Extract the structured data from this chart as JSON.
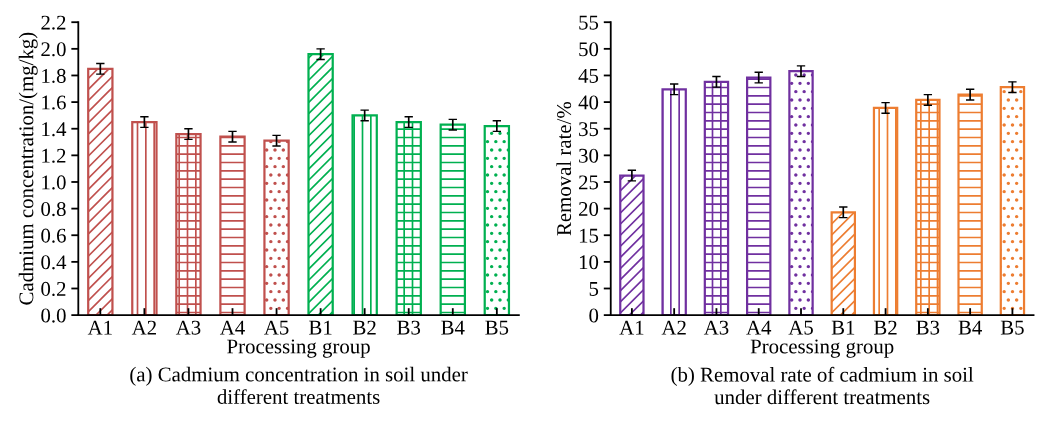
{
  "chart_data": [
    {
      "type": "bar",
      "title": "(a) Cadmium concentration in soil under different treatments",
      "xlabel": "Processing group",
      "ylabel": "Cadmium concentration/(mg/kg)",
      "categories": [
        "A1",
        "A2",
        "A3",
        "A4",
        "A5",
        "B1",
        "B2",
        "B3",
        "B4",
        "B5"
      ],
      "values": [
        1.85,
        1.45,
        1.36,
        1.34,
        1.31,
        1.96,
        1.5,
        1.45,
        1.43,
        1.42
      ],
      "errors": [
        0.04,
        0.04,
        0.04,
        0.04,
        0.04,
        0.04,
        0.04,
        0.04,
        0.04,
        0.04
      ],
      "colors": [
        "#c0504d",
        "#c0504d",
        "#c0504d",
        "#c0504d",
        "#c0504d",
        "#00b050",
        "#00b050",
        "#00b050",
        "#00b050",
        "#00b050"
      ],
      "ylim": [
        0,
        2.2
      ],
      "yticks": [
        {
          "value": 0,
          "label": "0.0"
        },
        0.2,
        0.4,
        0.6,
        0.8,
        {
          "value": 1,
          "label": "1.0"
        },
        1.2,
        1.4,
        1.6,
        1.8,
        {
          "value": 2,
          "label": "2.0"
        },
        2.2
      ],
      "grid": false,
      "legend": false
    },
    {
      "type": "bar",
      "title": "(b) Removal rate of cadmium in soil under different treatments",
      "xlabel": "Processing group",
      "ylabel": "Removal rate/%",
      "categories": [
        "A1",
        "A2",
        "A3",
        "A4",
        "A5",
        "B1",
        "B2",
        "B3",
        "B4",
        "B5"
      ],
      "values": [
        26.2,
        42.4,
        43.8,
        44.6,
        45.8,
        19.3,
        38.9,
        40.4,
        41.4,
        42.8
      ],
      "errors": [
        1.0,
        1.0,
        1.0,
        1.0,
        1.0,
        1.0,
        1.0,
        1.0,
        1.0,
        1.0
      ],
      "colors": [
        "#7030a0",
        "#7030a0",
        "#7030a0",
        "#7030a0",
        "#7030a0",
        "#ed7d31",
        "#ed7d31",
        "#ed7d31",
        "#ed7d31",
        "#ed7d31"
      ],
      "ylim": [
        0,
        55
      ],
      "yticks": [
        0,
        5,
        10,
        15,
        20,
        25,
        30,
        35,
        40,
        45,
        50,
        55
      ],
      "grid": false,
      "legend": false
    }
  ]
}
